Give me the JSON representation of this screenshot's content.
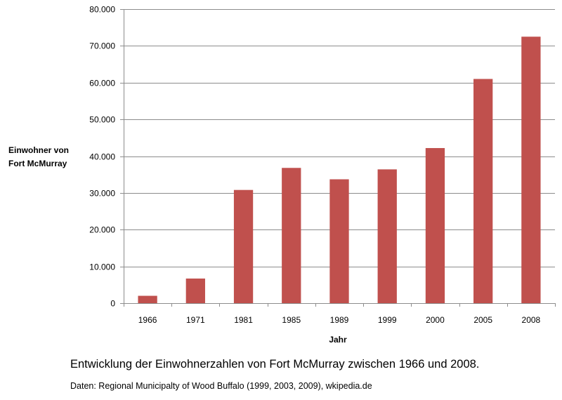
{
  "chart_data": {
    "type": "bar",
    "categories": [
      "1966",
      "1971",
      "1981",
      "1985",
      "1989",
      "1999",
      "2000",
      "2005",
      "2008"
    ],
    "series": [
      {
        "values": [
          2000,
          6700,
          30800,
          36800,
          33700,
          36400,
          42200,
          61000,
          72500
        ]
      }
    ],
    "ylabel": "Einwohner von Fort McMurray",
    "xlabel": "Jahr",
    "ylim": [
      0,
      80000
    ],
    "yticks": [
      0,
      10000,
      20000,
      30000,
      40000,
      50000,
      60000,
      70000,
      80000
    ],
    "ytick_labels": [
      "0",
      "10.000",
      "20.000",
      "30.000",
      "40.000",
      "50.000",
      "60.000",
      "70.000",
      "80.000"
    ],
    "grid": true,
    "bar_color": "#c0504d",
    "grid_color": "#8c8c8c"
  },
  "caption": "Entwicklung der Einwohnerzahlen von Fort McMurray zwischen 1966 und 2008.",
  "source": "Daten: Regional Municipalty of Wood Buffalo (1999, 2003, 2009), wkipedia.de"
}
